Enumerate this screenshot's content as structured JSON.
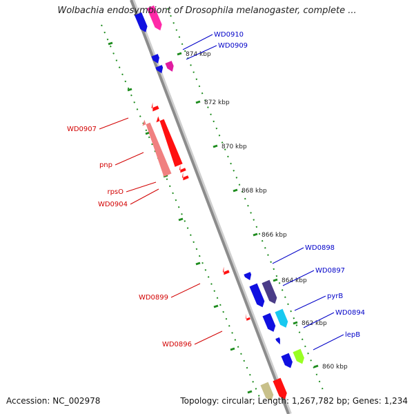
{
  "title": "Wolbachia endosymbiont of Drosophila melanogaster, complete ...",
  "footer": {
    "accession_label": "Accession:",
    "accession": "NC_002978",
    "topology_text": "Topology: circular; Length: 1,267,782 bp; Genes: 1,234"
  },
  "colors": {
    "backbone": "#8c8c8c",
    "ruler": "#1e8c1e",
    "forward_label": "#0000c8",
    "reverse_label": "#d20000"
  },
  "ticks": [
    {
      "label": "874 kbp"
    },
    {
      "label": "872 kbp"
    },
    {
      "label": "870 kbp"
    },
    {
      "label": "868 kbp"
    },
    {
      "label": "866 kbp"
    },
    {
      "label": "864 kbp"
    },
    {
      "label": "862 kbp"
    },
    {
      "label": "860 kbp"
    }
  ],
  "gene_labels": [
    {
      "text": "WD0910",
      "strand": "forward"
    },
    {
      "text": "WD0909",
      "strand": "forward"
    },
    {
      "text": "WD0898",
      "strand": "forward"
    },
    {
      "text": "WD0897",
      "strand": "forward"
    },
    {
      "text": "pyrB",
      "strand": "forward"
    },
    {
      "text": "WD0894",
      "strand": "forward"
    },
    {
      "text": "lepB",
      "strand": "forward"
    },
    {
      "text": "WD0907",
      "strand": "reverse"
    },
    {
      "text": "pnp",
      "strand": "reverse"
    },
    {
      "text": "rpsO",
      "strand": "reverse"
    },
    {
      "text": "WD0904",
      "strand": "reverse"
    },
    {
      "text": "WD0899",
      "strand": "reverse"
    },
    {
      "text": "WD0896",
      "strand": "reverse"
    }
  ]
}
